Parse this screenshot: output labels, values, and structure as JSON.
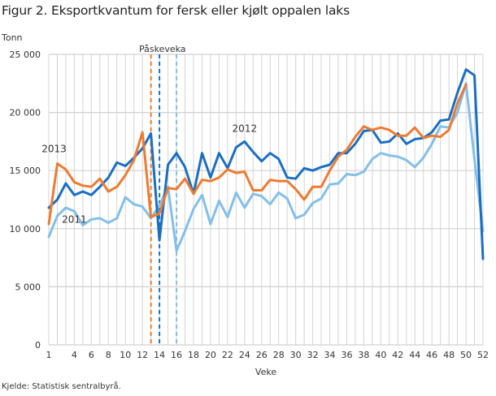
{
  "title": "Figur 2. Eksportkvantum for fersk eller kjølt oppalen laks",
  "source": "Kjelde: Statistisk sentralbyrå.",
  "chart_data": {
    "type": "line",
    "title": "Figur 2. Eksportkvantum for fersk eller kjølt oppalen laks",
    "xlabel": "Veke",
    "ylabel": "Tonn",
    "ylim": [
      0,
      25000
    ],
    "xlim": [
      1,
      52
    ],
    "grid": true,
    "yticks": [
      0,
      5000,
      10000,
      15000,
      20000,
      25000
    ],
    "ytick_labels": [
      "0",
      "5 000",
      "10 000",
      "15 000",
      "20 000",
      "25 000"
    ],
    "xticks": [
      1,
      4,
      6,
      8,
      10,
      12,
      14,
      16,
      18,
      20,
      22,
      24,
      26,
      28,
      30,
      32,
      34,
      36,
      38,
      40,
      42,
      44,
      46,
      48,
      50,
      52
    ],
    "xtick_labels": [
      "1",
      "4",
      "6",
      "8",
      "10",
      "12",
      "14",
      "16",
      "18",
      "20",
      "22",
      "24",
      "26",
      "28",
      "30",
      "32",
      "34",
      "36",
      "38",
      "40",
      "42",
      "44",
      "46",
      "48",
      "50",
      "52"
    ],
    "x": [
      1,
      2,
      3,
      4,
      5,
      6,
      7,
      8,
      9,
      10,
      11,
      12,
      13,
      14,
      15,
      16,
      17,
      18,
      19,
      20,
      21,
      22,
      23,
      24,
      25,
      26,
      27,
      28,
      29,
      30,
      31,
      32,
      33,
      34,
      35,
      36,
      37,
      38,
      39,
      40,
      41,
      42,
      43,
      44,
      45,
      46,
      47,
      48,
      49,
      50,
      51,
      52
    ],
    "series": [
      {
        "name": "2011",
        "color": "#83bfe9",
        "label_at_week": 4,
        "values": [
          9300,
          11100,
          11800,
          11500,
          10300,
          10800,
          10900,
          10500,
          10900,
          12700,
          12100,
          11900,
          10900,
          12000,
          13600,
          8100,
          9800,
          11700,
          12900,
          10400,
          12400,
          11000,
          13100,
          11800,
          13000,
          12800,
          12100,
          13100,
          12600,
          10900,
          11200,
          12200,
          12600,
          13800,
          13900,
          14700,
          14600,
          14900,
          16000,
          16500,
          16300,
          16200,
          15900,
          15300,
          16100,
          17300,
          18800,
          18700,
          20000,
          22500,
          16000,
          9800
        ]
      },
      {
        "name": "2012",
        "color": "#1a6fc4",
        "label_at_week": 24,
        "values": [
          11800,
          12500,
          13900,
          12900,
          13200,
          12900,
          13600,
          14400,
          15700,
          15400,
          16100,
          16900,
          18200,
          9000,
          15500,
          16500,
          15300,
          13000,
          16500,
          14400,
          16500,
          15200,
          17000,
          17500,
          16600,
          15800,
          16500,
          16000,
          14400,
          14300,
          15200,
          15000,
          15300,
          15500,
          16500,
          16500,
          17300,
          18400,
          18500,
          17400,
          17500,
          18200,
          17300,
          17700,
          17800,
          18300,
          19300,
          19400,
          21700,
          23700,
          23200,
          7400
        ]
      },
      {
        "name": "2013",
        "color": "#ee7b31",
        "label_at_week": 2,
        "values": [
          10400,
          15600,
          15100,
          14000,
          13700,
          13600,
          14300,
          13200,
          13600,
          14600,
          15900,
          18300,
          11000,
          11300,
          13500,
          13400,
          14300,
          13000,
          14200,
          14100,
          14400,
          15100,
          14800,
          14900,
          13300,
          13300,
          14200,
          14100,
          14100,
          13400,
          12500,
          13600,
          13600,
          15000,
          16200,
          16800,
          17900,
          18800,
          18500,
          18700,
          18500,
          18000,
          18000,
          18700,
          17800,
          18000,
          17900,
          18500,
          20800,
          22400,
          null,
          null
        ]
      }
    ],
    "annotations": [
      {
        "text": "Påskeveka",
        "type": "label"
      },
      {
        "week": 13,
        "year": "2013",
        "style": "dashed",
        "color": "#ee7b31"
      },
      {
        "week": 14,
        "year": "2012",
        "style": "dashed",
        "color": "#1a6fc4"
      },
      {
        "week": 16,
        "year": "2011",
        "style": "dashed",
        "color": "#83bfe9"
      }
    ],
    "easter_label": "Påskeveka"
  }
}
